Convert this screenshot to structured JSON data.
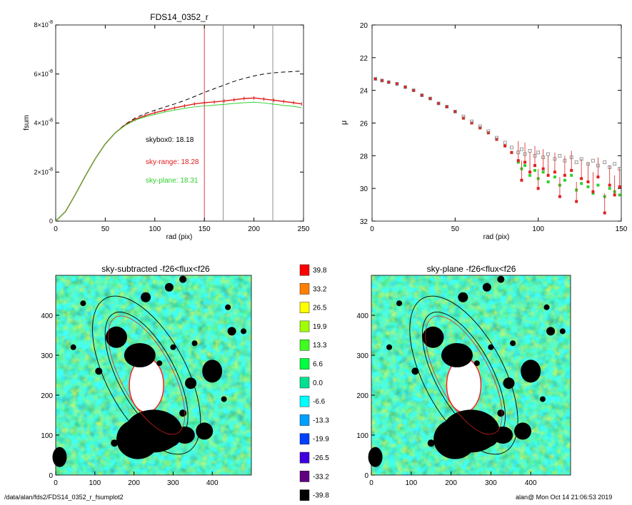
{
  "footer": {
    "path": "/data/alan/fds2/FDS14_0352_r_fsumplot2",
    "stamp": "alan@  Mon Oct 14 21:06:53 2019"
  },
  "colors": {
    "total": "#000000",
    "sky_range": "#e02020",
    "sky_plane": "#30d030",
    "vline_red": "#d04040",
    "vline_gray": "#909090"
  },
  "chart_data": [
    {
      "id": "growth",
      "type": "line",
      "title": "FDS14_0352_r",
      "xlabel": "rad (pix)",
      "ylabel": "fsum",
      "xlim": [
        0,
        250
      ],
      "ylim": [
        0,
        8e-08
      ],
      "xticks": [
        "0",
        "50",
        "100",
        "150",
        "200",
        "250"
      ],
      "yticks": [
        {
          "base": "0",
          "exp": ""
        },
        {
          "base": "2×10",
          "exp": "-8"
        },
        {
          "base": "4×10",
          "exp": "-8"
        },
        {
          "base": "6×10",
          "exp": "-8"
        },
        {
          "base": "8×10",
          "exp": "-8"
        }
      ],
      "vlines": [
        150,
        169,
        219
      ],
      "annotations": [
        {
          "text": "skybox0: 18.18",
          "color": "#000000"
        },
        {
          "text": "sky-range: 18.28",
          "color": "#e02020"
        },
        {
          "text": "sky-plane: 18.31",
          "color": "#30d030"
        }
      ],
      "series": [
        {
          "style": "dashed",
          "color": "#000000",
          "x": [
            0,
            10,
            20,
            30,
            40,
            50,
            60,
            70,
            80,
            90,
            100,
            110,
            120,
            130,
            140,
            150,
            160,
            170,
            180,
            190,
            200,
            210,
            220,
            230,
            240,
            248
          ],
          "y": [
            0,
            4e-09,
            1.1e-08,
            1.85e-08,
            2.55e-08,
            3.15e-08,
            3.6e-08,
            3.95e-08,
            4.2e-08,
            4.38e-08,
            4.52e-08,
            4.65e-08,
            4.78e-08,
            4.92e-08,
            5.08e-08,
            5.25e-08,
            5.4e-08,
            5.55e-08,
            5.7e-08,
            5.82e-08,
            5.92e-08,
            6e-08,
            6.05e-08,
            6.08e-08,
            6.1e-08,
            6.12e-08
          ]
        },
        {
          "style": "points",
          "color": "#e02020",
          "x": [
            0,
            10,
            20,
            30,
            40,
            50,
            60,
            70,
            80,
            90,
            100,
            110,
            120,
            130,
            140,
            150,
            160,
            170,
            180,
            190,
            200,
            210,
            220,
            230,
            240,
            248
          ],
          "y": [
            0,
            4e-09,
            1.1e-08,
            1.85e-08,
            2.55e-08,
            3.15e-08,
            3.6e-08,
            3.92e-08,
            4.15e-08,
            4.3e-08,
            4.42e-08,
            4.52e-08,
            4.62e-08,
            4.7e-08,
            4.78e-08,
            4.83e-08,
            4.86e-08,
            4.9e-08,
            4.95e-08,
            5e-08,
            5.02e-08,
            4.98e-08,
            4.93e-08,
            4.88e-08,
            4.83e-08,
            4.78e-08
          ]
        },
        {
          "style": "solid",
          "color": "#30d030",
          "x": [
            0,
            10,
            20,
            30,
            40,
            50,
            60,
            70,
            80,
            90,
            100,
            110,
            120,
            130,
            140,
            150,
            160,
            170,
            180,
            190,
            200,
            210,
            220,
            230,
            240,
            248
          ],
          "y": [
            0,
            4e-09,
            1.1e-08,
            1.85e-08,
            2.55e-08,
            3.15e-08,
            3.6e-08,
            3.9e-08,
            4.12e-08,
            4.25e-08,
            4.35e-08,
            4.45e-08,
            4.53e-08,
            4.6e-08,
            4.66e-08,
            4.7e-08,
            4.73e-08,
            4.76e-08,
            4.8e-08,
            4.83e-08,
            4.85e-08,
            4.82e-08,
            4.77e-08,
            4.72e-08,
            4.68e-08,
            4.63e-08
          ]
        }
      ]
    },
    {
      "id": "profile",
      "type": "scatter",
      "title": "",
      "xlabel": "rad (pix)",
      "ylabel": "μ",
      "xlim": [
        0,
        150
      ],
      "ylim": [
        32,
        20
      ],
      "xticks": [
        "0",
        "50",
        "100",
        "150"
      ],
      "yticks": [
        "20",
        "22",
        "24",
        "26",
        "28",
        "30",
        "32"
      ],
      "series": [
        {
          "color": "#808080",
          "marker": "open-square",
          "x": [
            2,
            6,
            10,
            15,
            20,
            25,
            30,
            35,
            40,
            45,
            50,
            55,
            60,
            65,
            70,
            75,
            80,
            84,
            88,
            90,
            92,
            95,
            98,
            100,
            103,
            106,
            110,
            113,
            116,
            120,
            123,
            126,
            130,
            133,
            136,
            140,
            143,
            146,
            149
          ],
          "y": [
            23.3,
            23.4,
            23.5,
            23.6,
            23.8,
            24.0,
            24.3,
            24.5,
            24.8,
            25.0,
            25.3,
            25.6,
            25.9,
            26.2,
            26.5,
            26.9,
            27.2,
            27.5,
            27.8,
            27.6,
            27.9,
            27.7,
            28.0,
            27.8,
            28.1,
            27.9,
            28.2,
            28.0,
            28.3,
            28.1,
            28.4,
            28.2,
            28.5,
            28.3,
            28.6,
            28.4,
            28.7,
            28.5,
            28.8
          ]
        },
        {
          "color": "#e02020",
          "marker": "square",
          "x": [
            2,
            6,
            10,
            15,
            20,
            25,
            30,
            35,
            40,
            45,
            50,
            55,
            60,
            65,
            70,
            75,
            80,
            84,
            88,
            90,
            92,
            95,
            98,
            100,
            103,
            106,
            110,
            113,
            116,
            120,
            123,
            126,
            130,
            133,
            136,
            140,
            143,
            146,
            149
          ],
          "y": [
            23.3,
            23.4,
            23.5,
            23.6,
            23.8,
            24.0,
            24.3,
            24.5,
            24.8,
            25.0,
            25.3,
            25.7,
            26.0,
            26.3,
            26.6,
            27.0,
            27.4,
            27.8,
            28.3,
            29.5,
            28.4,
            29.0,
            28.6,
            30.0,
            28.8,
            29.2,
            29.0,
            30.5,
            29.2,
            28.9,
            30.8,
            29.4,
            29.6,
            30.2,
            29.3,
            31.5,
            29.8,
            30.4,
            29.9
          ]
        },
        {
          "color": "#30d030",
          "marker": "square",
          "x": [
            2,
            6,
            10,
            15,
            20,
            25,
            30,
            35,
            40,
            45,
            50,
            55,
            60,
            65,
            70,
            75,
            80,
            84,
            88,
            90,
            92,
            95,
            98,
            100,
            103,
            106,
            110,
            113,
            116,
            120,
            123,
            126,
            130,
            133,
            136,
            140,
            143,
            146,
            149
          ],
          "y": [
            23.3,
            23.4,
            23.5,
            23.6,
            23.8,
            24.0,
            24.3,
            24.5,
            24.8,
            25.0,
            25.3,
            25.7,
            26.0,
            26.3,
            26.6,
            27.0,
            27.4,
            27.8,
            28.4,
            28.8,
            28.6,
            29.2,
            28.9,
            29.4,
            29.0,
            29.6,
            29.3,
            29.8,
            29.5,
            29.2,
            30.1,
            29.7,
            29.9,
            30.3,
            29.8,
            30.5,
            30.0,
            30.2,
            30.4
          ]
        }
      ]
    },
    {
      "id": "sky-subtracted",
      "type": "heatmap",
      "title": "sky-subtracted -f26<flux<f26",
      "xlim": [
        0,
        500
      ],
      "ylim": [
        0,
        500
      ],
      "xticks": [
        "0",
        "100",
        "200",
        "300",
        "400"
      ],
      "yticks": [
        "0",
        "100",
        "200",
        "300",
        "400"
      ],
      "colorbar": {
        "levels": [
          "39.8",
          "33.2",
          "26.5",
          "19.9",
          "13.3",
          "6.6",
          "0.0",
          "-6.6",
          "-13.3",
          "-19.9",
          "-26.5",
          "-33.2",
          "-39.8"
        ],
        "colors": [
          "#ff0000",
          "#ff8000",
          "#ffff00",
          "#a0ff00",
          "#40ff20",
          "#00ff40",
          "#00e090",
          "#00ffff",
          "#00a0ff",
          "#0040ff",
          "#4000e0",
          "#600080",
          "#000000"
        ]
      }
    },
    {
      "id": "sky-plane",
      "type": "heatmap",
      "title": "sky-plane -f26<flux<f26",
      "xlim": [
        0,
        500
      ],
      "ylim": [
        0,
        500
      ],
      "xticks": [
        "0",
        "100",
        "200",
        "300",
        "400"
      ],
      "yticks": [
        "0",
        "100",
        "200",
        "300",
        "400"
      ]
    }
  ]
}
